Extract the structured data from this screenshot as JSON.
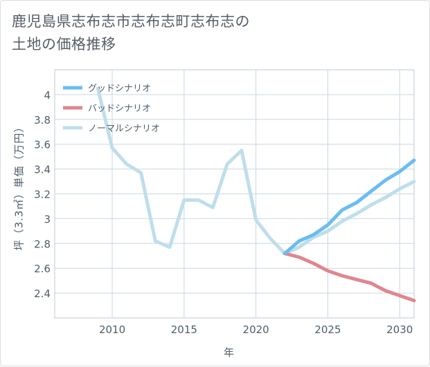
{
  "title_line1": "鹿児島県志布志市志布志町志布志の",
  "title_line2": "土地の価格推移",
  "chart_data": {
    "type": "line",
    "title": "鹿児島県志布志市志布志町志布志の土地の価格推移",
    "xlabel": "年",
    "ylabel": "坪（3.3㎡）単価（万円）",
    "xlim": [
      2006,
      2031
    ],
    "ylim": [
      2.2,
      4.2
    ],
    "x_ticks": [
      2010,
      2015,
      2020,
      2025,
      2030
    ],
    "y_ticks": [
      2.4,
      2.6,
      2.8,
      3,
      3.2,
      3.4,
      3.6,
      3.8,
      4
    ],
    "y_tick_labels": [
      "2.4",
      "2.6",
      "2.8",
      "3",
      "3.2",
      "3.4",
      "3.6",
      "3.8",
      "4"
    ],
    "grid": true,
    "legend_position": "top-left",
    "series": [
      {
        "name": "グッドシナリオ",
        "color": "#6bbcf0",
        "x": [
          2022,
          2023,
          2024,
          2025,
          2026,
          2027,
          2028,
          2029,
          2030,
          2031
        ],
        "values": [
          2.72,
          2.82,
          2.87,
          2.95,
          3.07,
          3.13,
          3.22,
          3.31,
          3.38,
          3.47
        ]
      },
      {
        "name": "バッドシナリオ",
        "color": "#e0868f",
        "x": [
          2022,
          2023,
          2024,
          2025,
          2026,
          2027,
          2028,
          2029,
          2030,
          2031
        ],
        "values": [
          2.72,
          2.69,
          2.64,
          2.58,
          2.54,
          2.51,
          2.48,
          2.42,
          2.38,
          2.34
        ]
      },
      {
        "name": "ノーマルシナリオ",
        "color": "#bfdeeb",
        "x": [
          2009,
          2010,
          2011,
          2012,
          2013,
          2014,
          2015,
          2016,
          2017,
          2018,
          2019,
          2020,
          2021,
          2022,
          2023,
          2024,
          2025,
          2026,
          2027,
          2028,
          2029,
          2030,
          2031
        ],
        "values": [
          4.05,
          3.57,
          3.44,
          3.37,
          2.82,
          2.77,
          3.15,
          3.15,
          3.09,
          3.44,
          3.55,
          2.99,
          2.84,
          2.72,
          2.77,
          2.85,
          2.9,
          2.98,
          3.04,
          3.11,
          3.17,
          3.24,
          3.3
        ]
      }
    ]
  }
}
